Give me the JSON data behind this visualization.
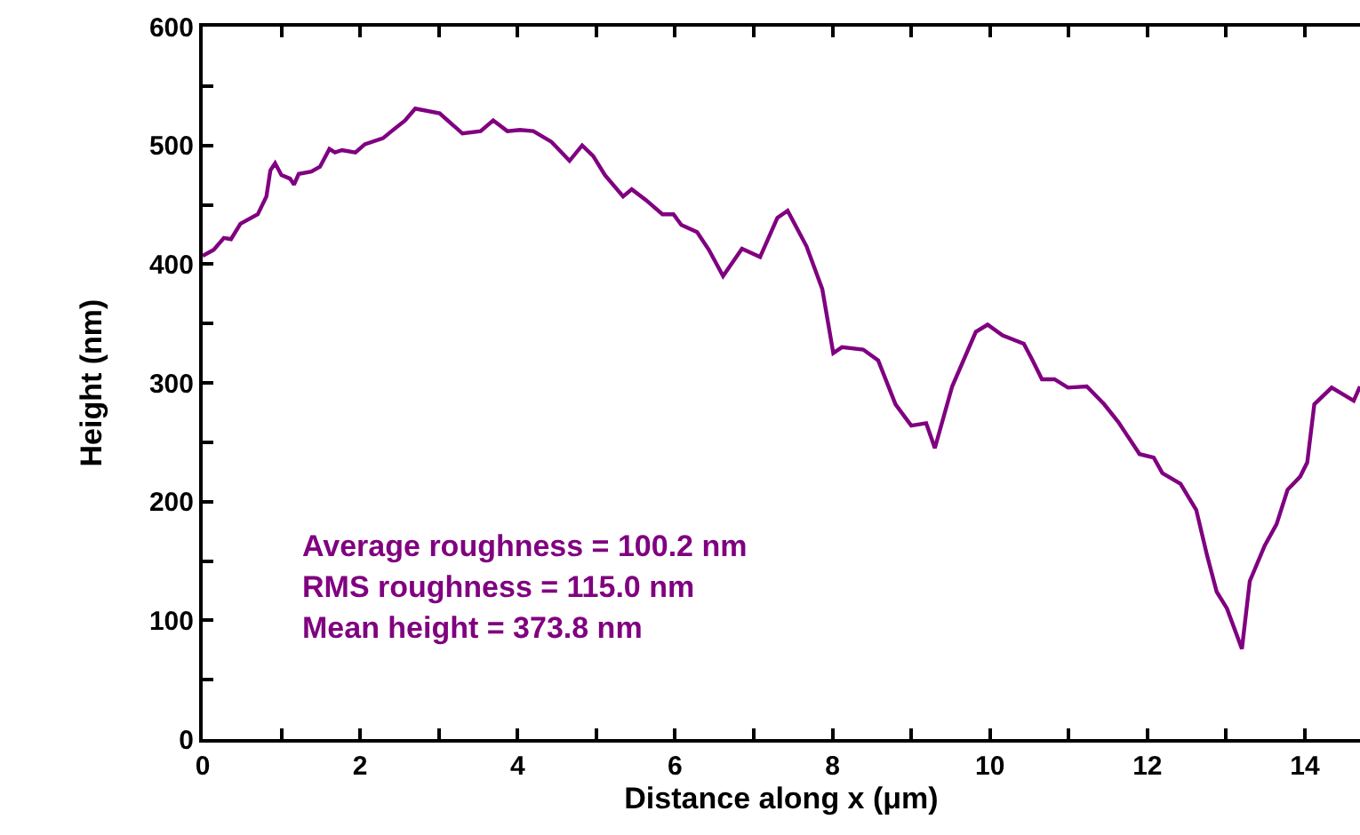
{
  "chart_data": {
    "type": "line",
    "xlabel": "Distance along x (μm)",
    "ylabel": "Height (nm)",
    "xlim": [
      0,
      14.7
    ],
    "ylim": [
      0,
      600
    ],
    "xticks": [
      0,
      {
        "value": 1,
        "label": null
      },
      2,
      {
        "value": 3,
        "label": null
      },
      4,
      {
        "value": 5,
        "label": null
      },
      6,
      {
        "value": 7,
        "label": null
      },
      8,
      {
        "value": 9,
        "label": null
      },
      10,
      {
        "value": 11,
        "label": null
      },
      12,
      {
        "value": 13,
        "label": null
      },
      14
    ],
    "yticks": [
      0,
      {
        "value": 50,
        "label": null
      },
      100,
      {
        "value": 150,
        "label": null
      },
      200,
      {
        "value": 250,
        "label": null
      },
      300,
      {
        "value": 350,
        "label": null
      },
      400,
      {
        "value": 450,
        "label": null
      },
      500,
      {
        "value": 550,
        "label": null
      },
      600
    ],
    "marker": "none",
    "line_style": "solid",
    "annotations": [
      "Average roughness = 100.2 nm",
      "RMS roughness = 115.0 nm",
      "Mean height = 373.8 nm"
    ],
    "series": [
      {
        "color": "#800080",
        "x": [
          0,
          0.14,
          0.27,
          0.36,
          0.48,
          0.7,
          0.81,
          0.86,
          0.92,
          1.0,
          1.11,
          1.16,
          1.22,
          1.38,
          1.49,
          1.61,
          1.68,
          1.77,
          1.94,
          2.06,
          2.29,
          2.4,
          2.57,
          2.7,
          3.01,
          3.3,
          3.53,
          3.69,
          3.87,
          4.03,
          4.2,
          4.43,
          4.66,
          4.82,
          4.96,
          5.11,
          5.34,
          5.45,
          5.63,
          5.84,
          5.98,
          6.08,
          6.28,
          6.43,
          6.61,
          6.85,
          7.08,
          7.3,
          7.43,
          7.67,
          7.87,
          8.01,
          8.12,
          8.39,
          8.58,
          8.8,
          9.0,
          9.19,
          9.3,
          9.52,
          9.82,
          9.97,
          10.16,
          10.43,
          10.54,
          10.66,
          10.82,
          10.99,
          11.23,
          11.45,
          11.63,
          11.9,
          12.08,
          12.19,
          12.42,
          12.62,
          12.76,
          12.88,
          13.01,
          13.2,
          13.3,
          13.49,
          13.64,
          13.78,
          13.94,
          14.03,
          14.12,
          14.34,
          14.62,
          14.7
        ],
        "values": [
          407,
          412,
          422,
          421,
          434,
          442,
          457,
          479,
          485,
          475,
          472,
          467,
          476,
          478,
          482,
          497,
          494,
          496,
          494,
          501,
          506,
          512,
          521,
          531,
          527,
          510,
          512,
          521,
          512,
          513,
          512,
          503,
          487,
          500,
          491,
          475,
          457,
          463,
          454,
          442,
          442,
          433,
          427,
          412,
          390,
          413,
          406,
          439,
          445,
          415,
          379,
          325,
          330,
          328,
          319,
          282,
          264,
          266,
          245,
          297,
          343,
          349,
          340,
          333,
          319,
          303,
          303,
          296,
          297,
          282,
          267,
          240,
          237,
          224,
          215,
          193,
          154,
          124,
          110,
          76,
          133,
          163,
          181,
          210,
          221,
          233,
          282,
          296,
          285,
          297
        ]
      }
    ]
  }
}
